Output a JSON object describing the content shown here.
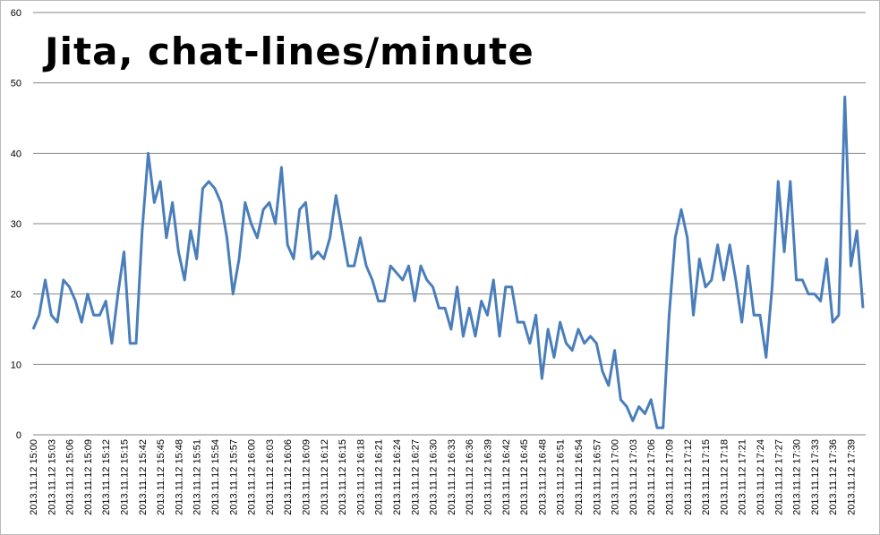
{
  "chart_data": {
    "type": "line",
    "title": "Jita, chat-lines/minute",
    "categories": [
      "2013.11.12 15:00",
      null,
      null,
      "2013.11.12 15:03",
      null,
      null,
      "2013.11.12 15:06",
      null,
      null,
      "2013.11.12 15:09",
      null,
      null,
      "2013.11.12 15:12",
      null,
      null,
      "2013.11.12 15:15",
      null,
      null,
      "2013.11.12 15:42",
      null,
      null,
      "2013.11.12 15:45",
      null,
      null,
      "2013.11.12 15:48",
      null,
      null,
      "2013.11.12 15:51",
      null,
      null,
      "2013.11.12 15:54",
      null,
      null,
      "2013.11.12 15:57",
      null,
      null,
      "2013.11.12 16:00",
      null,
      null,
      "2013.11.12 16:03",
      null,
      null,
      "2013.11.12 16:06",
      null,
      null,
      "2013.11.12 16:09",
      null,
      null,
      "2013.11.12 16:12",
      null,
      null,
      "2013.11.12 16:15",
      null,
      null,
      "2013.11.12 16:18",
      null,
      null,
      "2013.11.12 16:21",
      null,
      null,
      "2013.11.12 16:24",
      null,
      null,
      "2013.11.12 16:27",
      null,
      null,
      "2013.11.12 16:30",
      null,
      null,
      "2013.11.12 16:33",
      null,
      null,
      "2013.11.12 16:36",
      null,
      null,
      "2013.11.12 16:39",
      null,
      null,
      "2013.11.12 16:42",
      null,
      null,
      "2013.11.12 16:45",
      null,
      null,
      "2013.11.12 16:48",
      null,
      null,
      "2013.11.12 16:51",
      null,
      null,
      "2013.11.12 16:54",
      null,
      null,
      "2013.11.12 16:57",
      null,
      null,
      "2013.11.12 17:00",
      null,
      null,
      "2013.11.12 17:03",
      null,
      null,
      "2013.11.12 17:06",
      null,
      null,
      "2013.11.12 17:09",
      null,
      null,
      "2013.11.12 17:12",
      null,
      null,
      "2013.11.12 17:15",
      null,
      null,
      "2013.11.12 17:18",
      null,
      null,
      "2013.11.12 17:21",
      null,
      null,
      "2013.11.12 17:24",
      null,
      null,
      "2013.11.12 17:27",
      null,
      null,
      "2013.11.12 17:30",
      null,
      null,
      "2013.11.12 17:33",
      null,
      null,
      "2013.11.12 17:36",
      null,
      null,
      "2013.11.12 17:39",
      null,
      null
    ],
    "values": [
      15,
      17,
      22,
      17,
      16,
      22,
      21,
      19,
      16,
      20,
      17,
      17,
      19,
      13,
      20,
      26,
      13,
      13,
      29,
      40,
      33,
      36,
      28,
      33,
      26,
      22,
      29,
      25,
      35,
      36,
      35,
      33,
      28,
      20,
      25,
      33,
      30,
      28,
      32,
      33,
      30,
      38,
      27,
      25,
      32,
      33,
      25,
      26,
      25,
      28,
      34,
      29,
      24,
      24,
      28,
      24,
      22,
      19,
      19,
      24,
      23,
      22,
      24,
      19,
      24,
      22,
      21,
      18,
      18,
      15,
      21,
      14,
      18,
      14,
      19,
      17,
      22,
      14,
      21,
      21,
      16,
      16,
      13,
      17,
      8,
      15,
      11,
      16,
      13,
      12,
      15,
      13,
      14,
      13,
      9,
      7,
      12,
      5,
      4,
      2,
      4,
      3,
      5,
      1,
      1,
      17,
      28,
      32,
      28,
      17,
      25,
      21,
      22,
      27,
      22,
      27,
      22,
      16,
      24,
      17,
      17,
      11,
      21,
      36,
      26,
      36,
      22,
      22,
      20,
      20,
      19,
      25,
      16,
      17,
      48,
      24,
      29,
      18
    ],
    "color": "#4a7ebb",
    "ylim": [
      0,
      60
    ],
    "yticks": [
      0,
      10,
      20,
      30,
      40,
      50,
      60
    ],
    "grid": true
  }
}
